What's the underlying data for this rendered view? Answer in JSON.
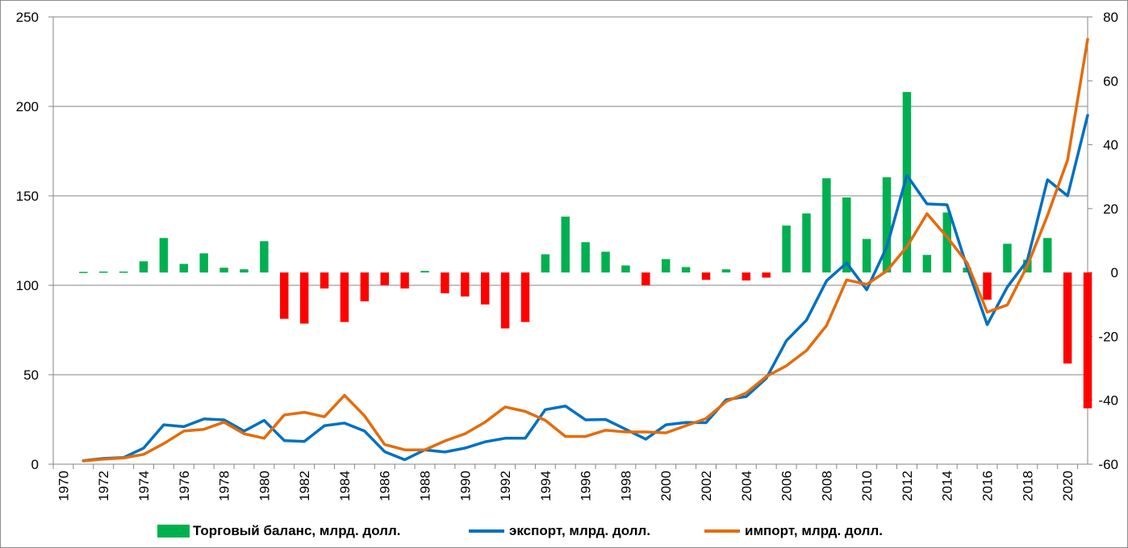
{
  "chart_data": {
    "type": "bar+line",
    "title": "",
    "x": [
      1970,
      1971,
      1972,
      1973,
      1974,
      1975,
      1976,
      1977,
      1978,
      1979,
      1980,
      1981,
      1982,
      1983,
      1984,
      1985,
      1986,
      1987,
      1988,
      1989,
      1990,
      1991,
      1992,
      1993,
      1994,
      1995,
      1996,
      1997,
      1998,
      1999,
      2000,
      2001,
      2002,
      2003,
      2004,
      2005,
      2006,
      2007,
      2008,
      2009,
      2010,
      2011,
      2012,
      2013,
      2014,
      2015,
      2016,
      2017,
      2018,
      2019,
      2020,
      2021
    ],
    "x_tick_labels": [
      "1970",
      "1972",
      "1974",
      "1976",
      "1978",
      "1980",
      "1982",
      "1984",
      "1986",
      "1988",
      "1990",
      "1992",
      "1994",
      "1996",
      "1998",
      "2000",
      "2002",
      "2004",
      "2006",
      "2008",
      "2010",
      "2012",
      "2014",
      "2016",
      "2018",
      "2020"
    ],
    "y_left": {
      "range": [
        0,
        250
      ],
      "ticks": [
        "0",
        "50",
        "100",
        "150",
        "200",
        "250"
      ]
    },
    "y_right": {
      "range": [
        -60,
        80
      ],
      "ticks": [
        "-60",
        "-40",
        "-20",
        "0",
        "20",
        "40",
        "60",
        "80"
      ]
    },
    "grid": true,
    "legend_position": "bottom",
    "series": [
      {
        "name": "Торговый баланс, млрд. долл.",
        "type": "bar",
        "axis": "right",
        "color_positive": "#00b050",
        "color_negative": "#ff0000",
        "x": [
          1971,
          1972,
          1973,
          1974,
          1975,
          1976,
          1977,
          1978,
          1979,
          1980,
          1981,
          1982,
          1983,
          1984,
          1985,
          1986,
          1987,
          1988,
          1989,
          1990,
          1991,
          1992,
          1993,
          1994,
          1995,
          1996,
          1997,
          1998,
          1999,
          2000,
          2001,
          2002,
          2003,
          2004,
          2005,
          2006,
          2007,
          2008,
          2009,
          2010,
          2011,
          2012,
          2013,
          2014,
          2015,
          2016,
          2017,
          2018,
          2019,
          2020,
          2021
        ],
        "values": [
          0.2,
          0.3,
          0.3,
          3.5,
          10.8,
          2.7,
          6.0,
          1.5,
          1.0,
          9.8,
          -14.5,
          -16.0,
          -5.0,
          -15.5,
          -9.0,
          -4.0,
          -5.0,
          0.5,
          -6.5,
          -7.5,
          -10.0,
          -17.5,
          -15.5,
          5.7,
          17.5,
          9.5,
          6.5,
          2.2,
          -4.0,
          4.2,
          1.7,
          -2.3,
          1.0,
          -2.5,
          -1.6,
          14.7,
          18.5,
          29.5,
          23.5,
          10.5,
          29.8,
          56.5,
          5.5,
          18.8,
          1.5,
          -8.5,
          9.0,
          4.0,
          10.8,
          -28.5,
          -42.5
        ]
      },
      {
        "name": "экспорт, млрд. долл.",
        "type": "line",
        "axis": "left",
        "color": "#0070c0",
        "x": [
          1971,
          1972,
          1973,
          1974,
          1975,
          1976,
          1977,
          1978,
          1979,
          1980,
          1981,
          1982,
          1983,
          1984,
          1985,
          1986,
          1987,
          1988,
          1989,
          1990,
          1991,
          1992,
          1993,
          1994,
          1995,
          1996,
          1997,
          1998,
          1999,
          2000,
          2001,
          2002,
          2003,
          2004,
          2005,
          2006,
          2007,
          2008,
          2009,
          2010,
          2011,
          2012,
          2013,
          2014,
          2015,
          2016,
          2017,
          2018,
          2019,
          2020,
          2021
        ],
        "values": [
          2.0,
          3.2,
          3.7,
          9.0,
          22.0,
          21.0,
          25.3,
          24.8,
          18.5,
          24.5,
          13.2,
          12.7,
          21.5,
          23.0,
          18.5,
          7.0,
          2.5,
          8.0,
          6.8,
          9.0,
          12.5,
          14.5,
          14.5,
          30.5,
          32.5,
          24.8,
          25.0,
          19.5,
          14.0,
          22.0,
          23.3,
          23.2,
          36.0,
          37.8,
          48.0,
          69.0,
          80.5,
          102.5,
          112.5,
          97.5,
          121.5,
          161.5,
          145.5,
          145.0,
          110.0,
          78.0,
          99.0,
          114.0,
          159.0,
          150.0,
          195.0
        ]
      },
      {
        "name": "импорт, млрд. долл.",
        "type": "line",
        "axis": "left",
        "color": "#e46c0a",
        "x": [
          1971,
          1972,
          1973,
          1974,
          1975,
          1976,
          1977,
          1978,
          1979,
          1980,
          1981,
          1982,
          1983,
          1984,
          1985,
          1986,
          1987,
          1988,
          1989,
          1990,
          1991,
          1992,
          1993,
          1994,
          1995,
          1996,
          1997,
          1998,
          1999,
          2000,
          2001,
          2002,
          2003,
          2004,
          2005,
          2006,
          2007,
          2008,
          2009,
          2010,
          2011,
          2012,
          2013,
          2014,
          2015,
          2016,
          2017,
          2018,
          2019,
          2020,
          2021
        ],
        "values": [
          1.8,
          2.8,
          3.5,
          5.5,
          11.5,
          18.5,
          19.5,
          23.5,
          17.0,
          14.5,
          27.5,
          29.0,
          26.5,
          38.5,
          27.0,
          11.0,
          8.0,
          8.0,
          13.0,
          17.0,
          23.5,
          32.0,
          29.5,
          24.5,
          15.5,
          15.5,
          19.0,
          18.0,
          18.0,
          17.5,
          21.5,
          25.5,
          35.0,
          39.8,
          49.0,
          55.0,
          63.5,
          77.5,
          103.0,
          100.5,
          108.0,
          121.5,
          140.0,
          127.0,
          112.5,
          85.0,
          89.0,
          111.0,
          139.0,
          170.0,
          237.5
        ]
      }
    ]
  },
  "legend": {
    "bar_label": "Торговый баланс, млрд. долл.",
    "export_label": "экспорт, млрд. долл.",
    "import_label": "импорт, млрд. долл."
  }
}
